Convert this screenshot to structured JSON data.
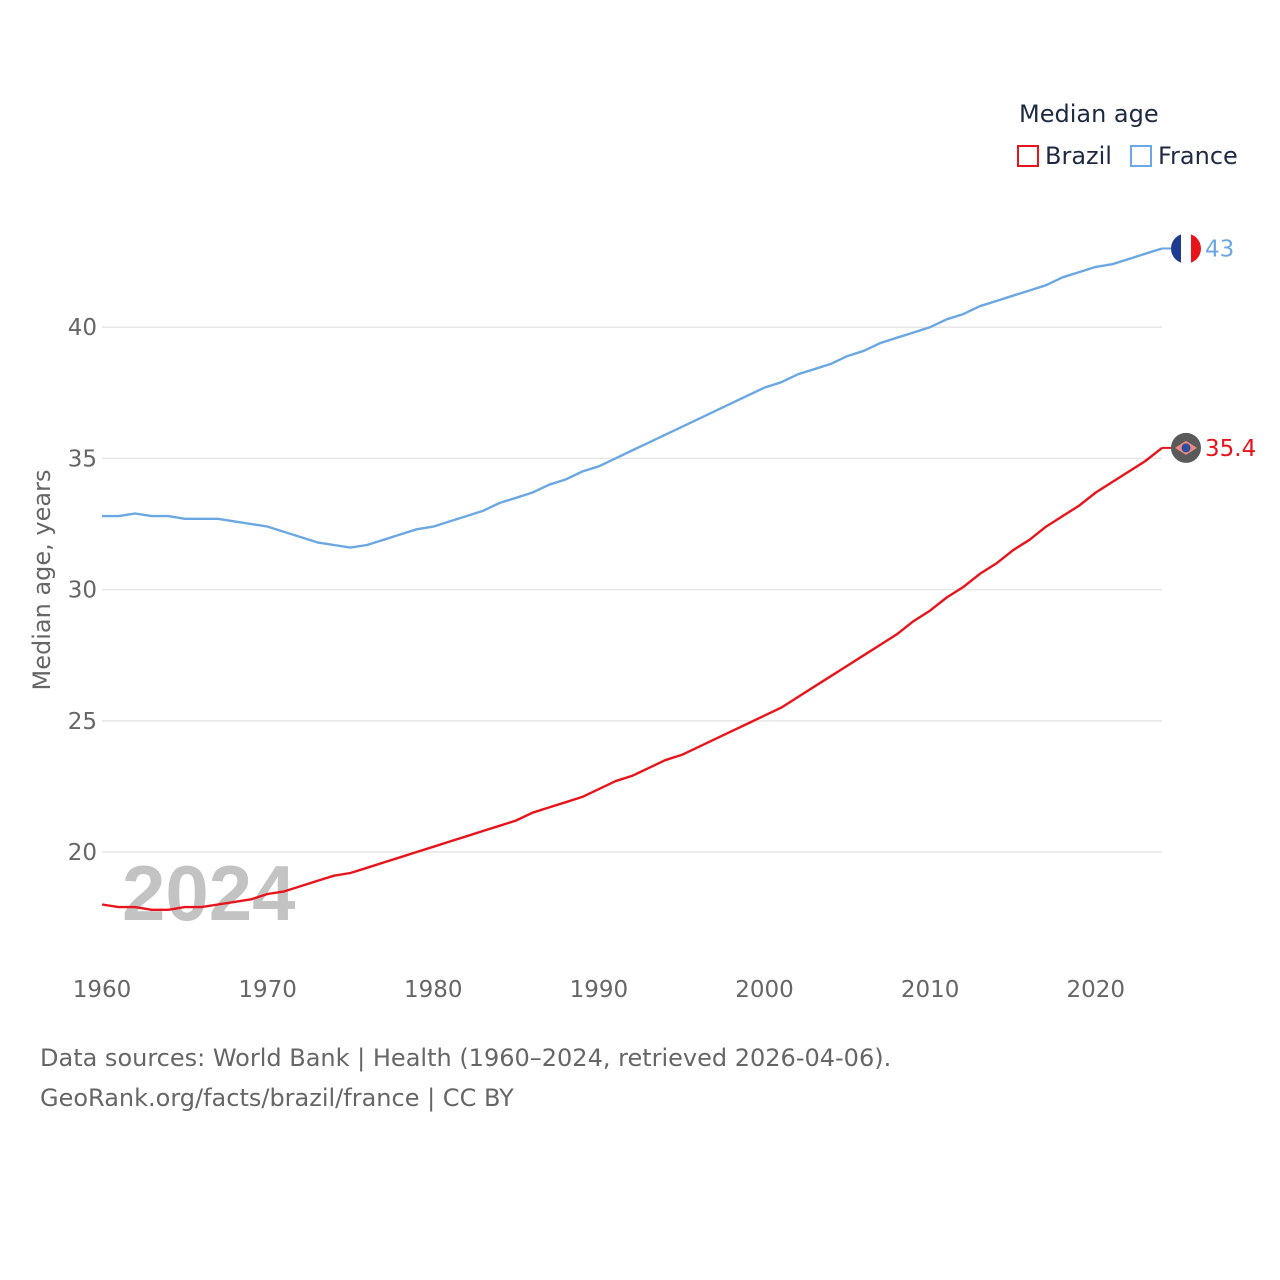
{
  "legend": {
    "title": "Median age"
  },
  "footer": {
    "source_line": "Data sources: World Bank | Health (1960–2024, retrieved 2026-04-06).",
    "attribution_line": "GeoRank.org/facts/brazil/france | CC BY"
  },
  "chart_data": {
    "type": "line",
    "title": "",
    "xlabel": "",
    "ylabel": "Median age, years",
    "year_watermark": "2024",
    "xlim": [
      1960,
      2024
    ],
    "ylim": [
      16,
      45
    ],
    "xticks": [
      1960,
      1970,
      1980,
      1990,
      2000,
      2010,
      2020
    ],
    "yticks": [
      20,
      25,
      30,
      35,
      40
    ],
    "grid": true,
    "legend_position": "top-right",
    "x": [
      1960,
      1961,
      1962,
      1963,
      1964,
      1965,
      1966,
      1967,
      1968,
      1969,
      1970,
      1971,
      1972,
      1973,
      1974,
      1975,
      1976,
      1977,
      1978,
      1979,
      1980,
      1981,
      1982,
      1983,
      1984,
      1985,
      1986,
      1987,
      1988,
      1989,
      1990,
      1991,
      1992,
      1993,
      1994,
      1995,
      1996,
      1997,
      1998,
      1999,
      2000,
      2001,
      2002,
      2003,
      2004,
      2005,
      2006,
      2007,
      2008,
      2009,
      2010,
      2011,
      2012,
      2013,
      2014,
      2015,
      2016,
      2017,
      2018,
      2019,
      2020,
      2021,
      2022,
      2023,
      2024
    ],
    "series": [
      {
        "name": "Brazil",
        "color": "#e8141b",
        "end_label": "35.4",
        "marker_icon": "brazil-flag-icon",
        "values": [
          18.0,
          17.9,
          17.9,
          17.8,
          17.8,
          17.9,
          17.9,
          18.0,
          18.1,
          18.2,
          18.4,
          18.5,
          18.7,
          18.9,
          19.1,
          19.2,
          19.4,
          19.6,
          19.8,
          20.0,
          20.2,
          20.4,
          20.6,
          20.8,
          21.0,
          21.2,
          21.5,
          21.7,
          21.9,
          22.1,
          22.4,
          22.7,
          22.9,
          23.2,
          23.5,
          23.7,
          24.0,
          24.3,
          24.6,
          24.9,
          25.2,
          25.5,
          25.9,
          26.3,
          26.7,
          27.1,
          27.5,
          27.9,
          28.3,
          28.8,
          29.2,
          29.7,
          30.1,
          30.6,
          31.0,
          31.5,
          31.9,
          32.4,
          32.8,
          33.2,
          33.7,
          34.1,
          34.5,
          34.9,
          35.4
        ]
      },
      {
        "name": "France",
        "color": "#6ba7e2",
        "end_label": "43",
        "marker_icon": "france-flag-icon",
        "values": [
          32.8,
          32.8,
          32.9,
          32.8,
          32.8,
          32.7,
          32.7,
          32.7,
          32.6,
          32.5,
          32.4,
          32.2,
          32.0,
          31.8,
          31.7,
          31.6,
          31.7,
          31.9,
          32.1,
          32.3,
          32.4,
          32.6,
          32.8,
          33.0,
          33.3,
          33.5,
          33.7,
          34.0,
          34.2,
          34.5,
          34.7,
          35.0,
          35.3,
          35.6,
          35.9,
          36.2,
          36.5,
          36.8,
          37.1,
          37.4,
          37.7,
          37.9,
          38.2,
          38.4,
          38.6,
          38.9,
          39.1,
          39.4,
          39.6,
          39.8,
          40.0,
          40.3,
          40.5,
          40.8,
          41.0,
          41.2,
          41.4,
          41.6,
          41.9,
          42.1,
          42.3,
          42.4,
          42.6,
          42.8,
          43.0
        ]
      }
    ]
  }
}
